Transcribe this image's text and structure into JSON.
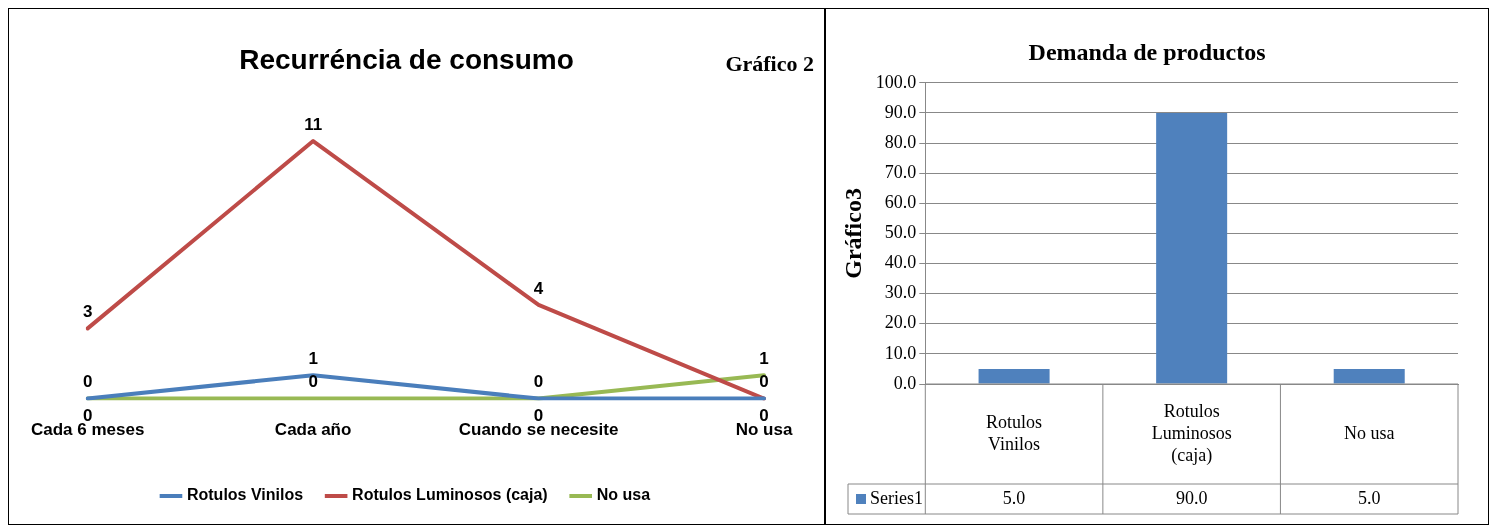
{
  "chart_data": [
    {
      "type": "line",
      "title": "Recurréncia de consumo",
      "annotations": [
        "Gráfico 2"
      ],
      "categories": [
        "Cada 6 meses",
        "Cada año",
        "Cuando se necesite",
        "No usa"
      ],
      "series": [
        {
          "name": "Rotulos Vinilos",
          "color": "#4a7ebb",
          "values": [
            0,
            1,
            0,
            0
          ]
        },
        {
          "name": "Rotulos Luminosos (caja)",
          "color": "#be4b48",
          "values": [
            3,
            11,
            4,
            0
          ]
        },
        {
          "name": "No usa",
          "color": "#98b954",
          "values": [
            0,
            0,
            0,
            1
          ]
        }
      ],
      "data_labels": true,
      "legend": "bottom",
      "marker": "none",
      "line_style": "solid",
      "grid": false,
      "tick_labels": "x"
    },
    {
      "type": "bar",
      "title": "Demanda de productos",
      "ylabel": "Gráfico3",
      "categories": [
        "Rotulos Vinilos",
        "Rotulos Luminosos (caja)",
        "No usa"
      ],
      "series": [
        {
          "name": "Series1",
          "color": "#4f81bd",
          "values": [
            5,
            90,
            5
          ],
          "value_labels": [
            "5.0",
            "90.0",
            "5.0"
          ]
        }
      ],
      "ylim": [
        0,
        100
      ],
      "yticks": [
        {
          "value": 0,
          "label": "0.0"
        },
        {
          "value": 10,
          "label": "10.0"
        },
        {
          "value": 20,
          "label": "20.0"
        },
        {
          "value": 30,
          "label": "30.0"
        },
        {
          "value": 40,
          "label": "40.0"
        },
        {
          "value": 50,
          "label": "50.0"
        },
        {
          "value": 60,
          "label": "60.0"
        },
        {
          "value": 70,
          "label": "70.0"
        },
        {
          "value": 80,
          "label": "80.0"
        },
        {
          "value": 90,
          "label": "90.0"
        },
        {
          "value": 100,
          "label": "100.0"
        }
      ],
      "grid": "y",
      "legend": "bottom"
    }
  ]
}
